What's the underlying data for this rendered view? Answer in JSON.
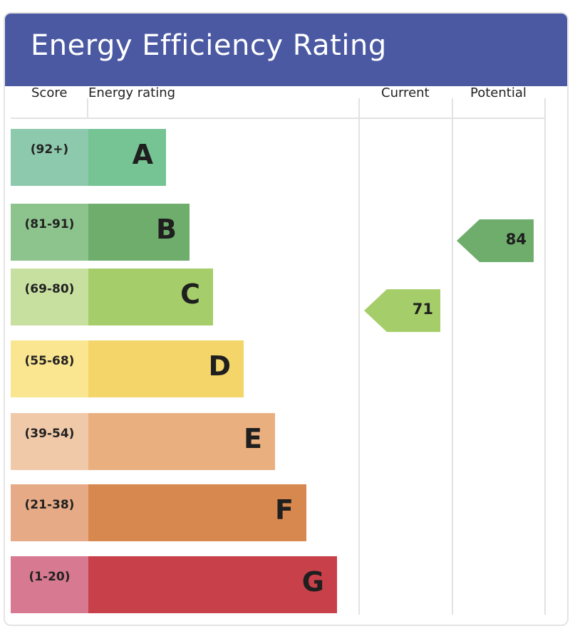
{
  "header": {
    "title": "Energy Efficiency Rating"
  },
  "columns": {
    "score": "Score",
    "rating": "Energy rating",
    "current": "Current",
    "potential": "Potential"
  },
  "chart_data": {
    "type": "bar",
    "bands": [
      {
        "letter": "A",
        "range": "(92+)",
        "min": 92,
        "max": 100,
        "bar_color": "#76c394",
        "score_color": "#8dc9ad"
      },
      {
        "letter": "B",
        "range": "(81-91)",
        "min": 81,
        "max": 91,
        "bar_color": "#6ead6b",
        "score_color": "#8dc38d"
      },
      {
        "letter": "C",
        "range": "(69-80)",
        "min": 69,
        "max": 80,
        "bar_color": "#a5cd6a",
        "score_color": "#c8e09f"
      },
      {
        "letter": "D",
        "range": "(55-68)",
        "min": 55,
        "max": 68,
        "bar_color": "#f4d56a",
        "score_color": "#fae590"
      },
      {
        "letter": "E",
        "range": "(39-54)",
        "min": 39,
        "max": 54,
        "bar_color": "#e9af7f",
        "score_color": "#f0c9a9"
      },
      {
        "letter": "F",
        "range": "(21-38)",
        "min": 21,
        "max": 38,
        "bar_color": "#d6884f",
        "score_color": "#e6aa86"
      },
      {
        "letter": "G",
        "range": "(1-20)",
        "min": 1,
        "max": 20,
        "bar_color": "#c8404a",
        "score_color": "#d77990"
      }
    ],
    "current": {
      "value": 71,
      "band": "C",
      "color": "#a5cd6a"
    },
    "potential": {
      "value": 84,
      "band": "B",
      "color": "#6ead6b"
    }
  }
}
